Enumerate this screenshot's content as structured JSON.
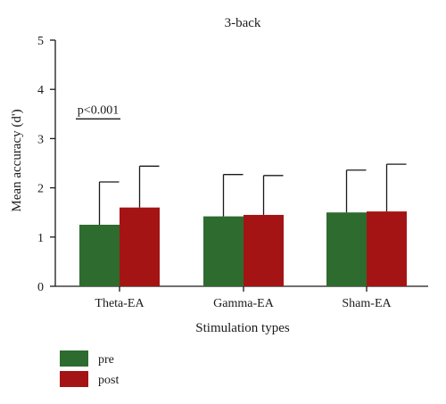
{
  "chart_data": {
    "type": "bar",
    "title": "3-back",
    "xlabel": "Stimulation types",
    "ylabel": "Mean accuracy (d')",
    "ylim": [
      0,
      5
    ],
    "yticks": [
      0,
      1,
      2,
      3,
      4,
      5
    ],
    "categories": [
      "Theta-EA",
      "Gamma-EA",
      "Sham-EA"
    ],
    "series": [
      {
        "name": "pre",
        "color": "#2e6b2e",
        "values": [
          1.25,
          1.42,
          1.5
        ],
        "error": [
          0.87,
          0.85,
          0.86
        ]
      },
      {
        "name": "post",
        "color": "#a51414",
        "values": [
          1.6,
          1.45,
          1.52
        ],
        "error": [
          0.84,
          0.8,
          0.96
        ]
      }
    ],
    "annotations": [
      {
        "text": "p<0.001",
        "category": "Theta-EA",
        "y": 3.4
      }
    ],
    "grid": false,
    "legend": "bottom-left"
  }
}
